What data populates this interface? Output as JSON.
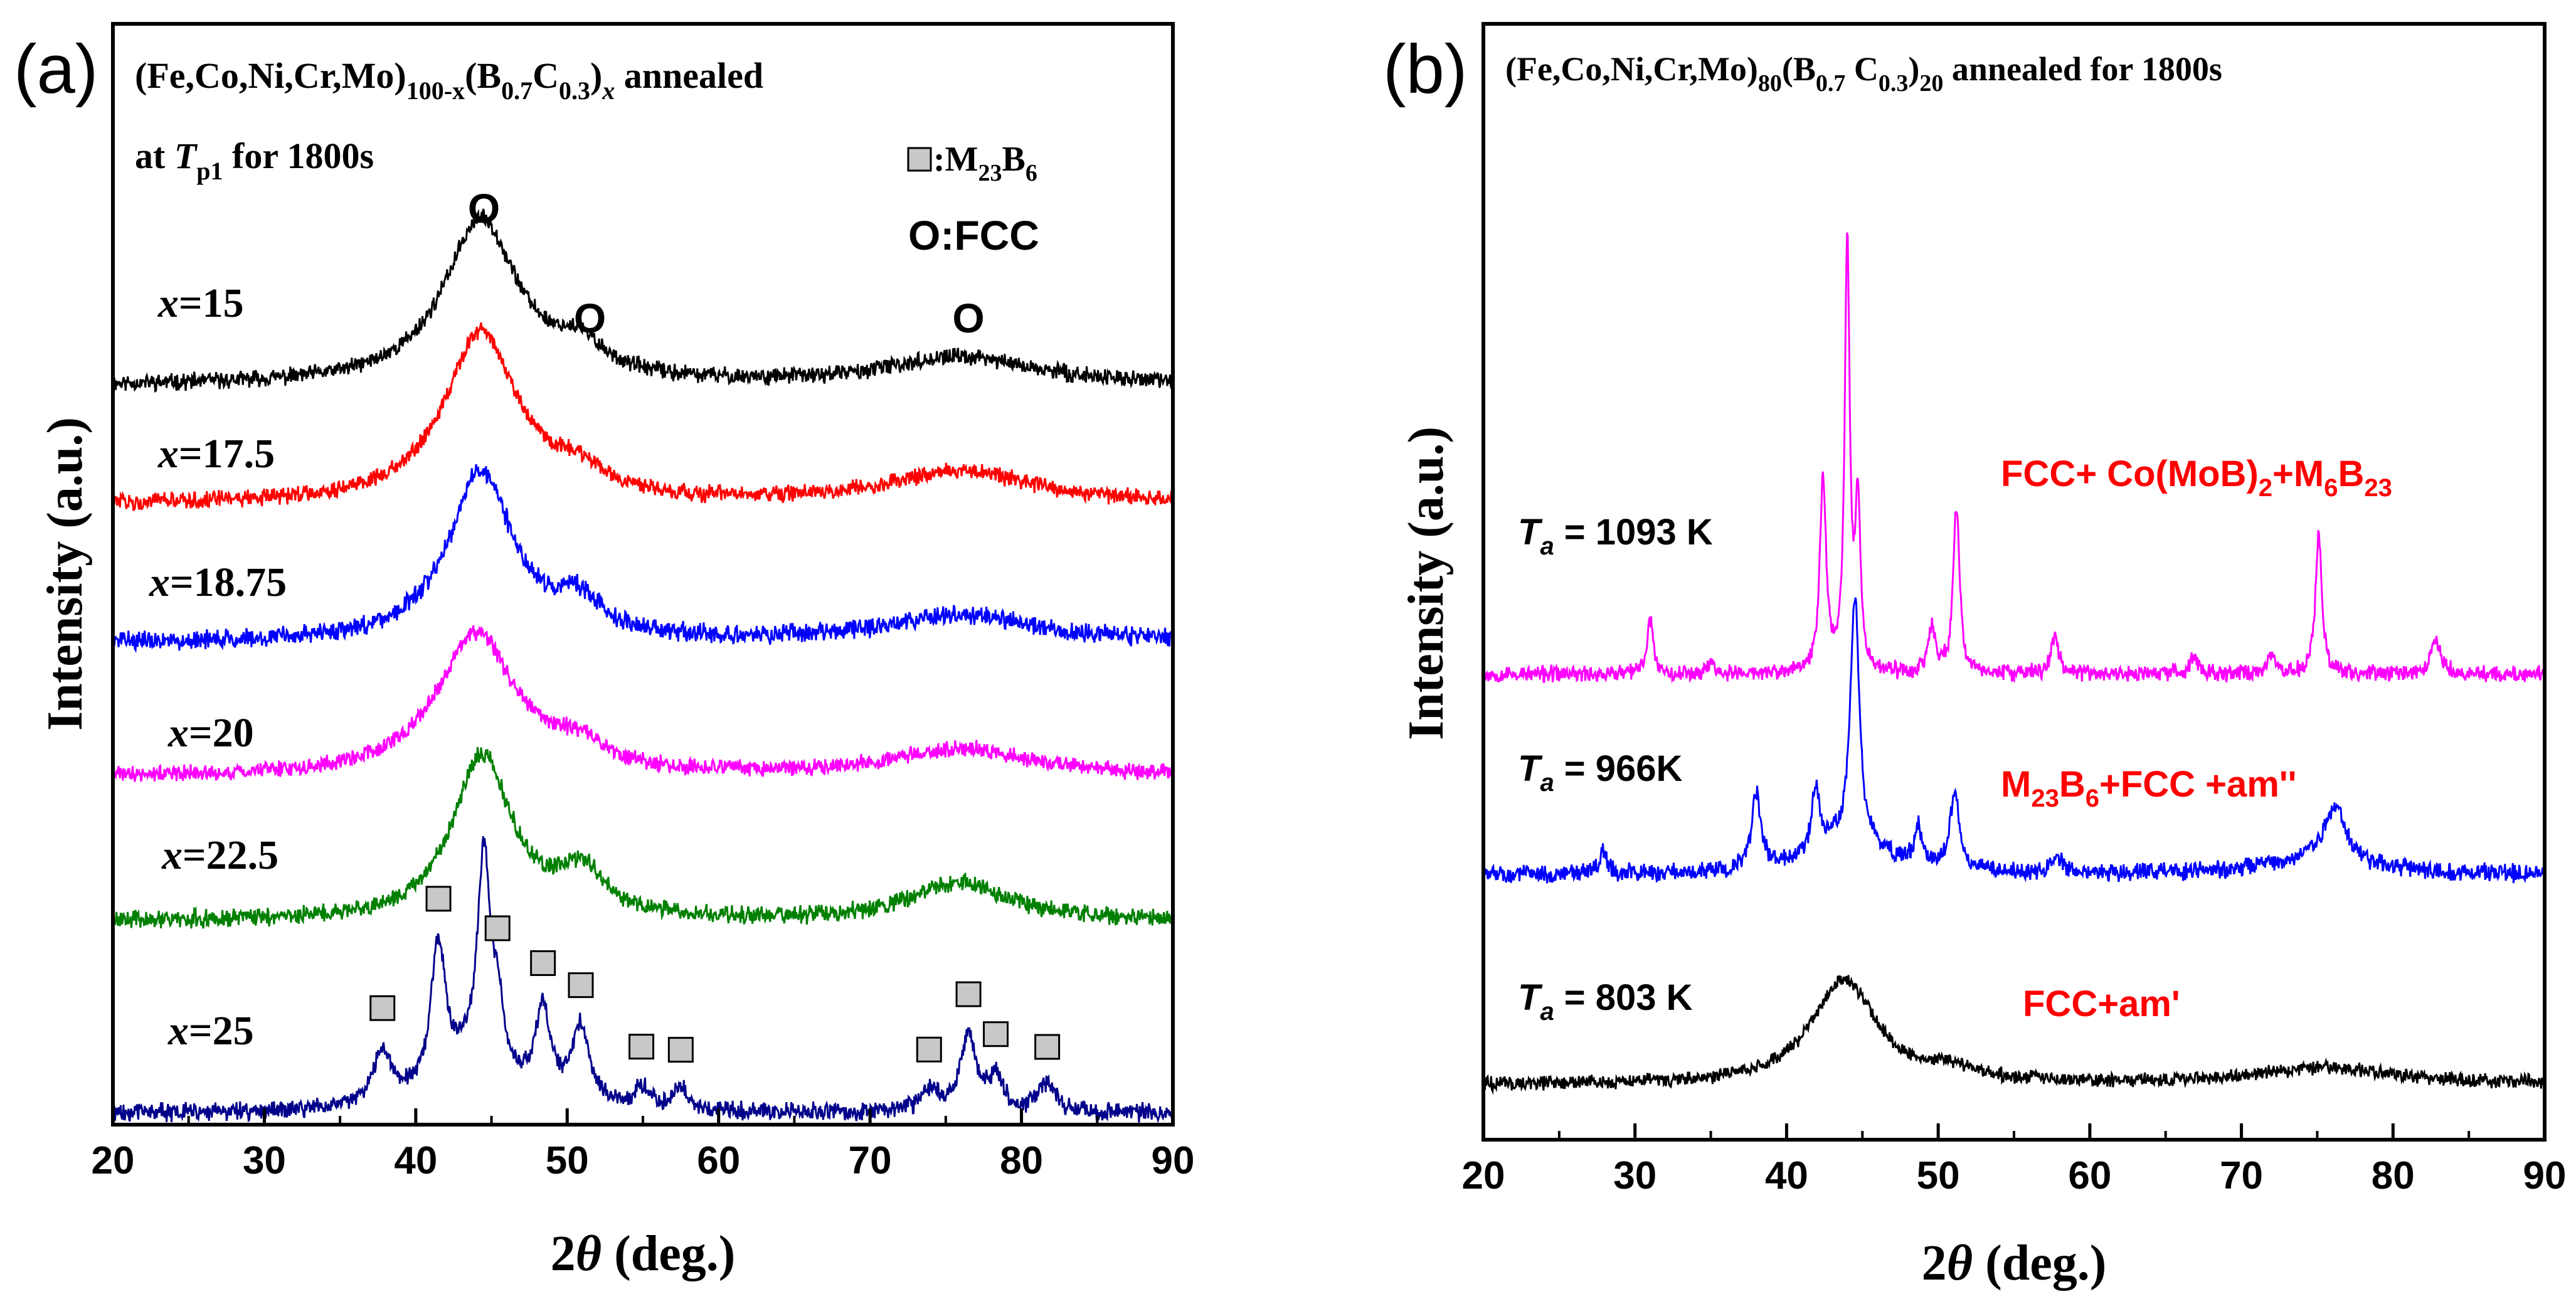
{
  "chart_data": [
    {
      "panel": "(a)",
      "type": "line",
      "title_line1": {
        "pre": "(Fe,Co,Ni,Cr,Mo)",
        "sub1": "100-x",
        "mid": "(B",
        "sub2": "0.7",
        "mid2": "C",
        "sub3": "0.3",
        "mid3": ")",
        "sub4": "x",
        "post": " annealed"
      },
      "title_line2": {
        "pre": "at ",
        "it": "T",
        "sub": "p1",
        "post": " for 1800s"
      },
      "xlabel": {
        "pre": "2",
        "theta": "θ",
        "post": " (deg.)"
      },
      "ylabel": "Intensity (a.u.)",
      "xlim": [
        20,
        90
      ],
      "xticks": [
        "20",
        "30",
        "40",
        "50",
        "60",
        "70",
        "80",
        "90"
      ],
      "xtick_values": [
        20,
        30,
        40,
        50,
        60,
        70,
        80,
        90
      ],
      "legend": {
        "m23b6": {
          "pre": ":M",
          "sub1": "23",
          "mid": "B",
          "sub2": "6"
        },
        "fcc": "O:FCC"
      },
      "fcc_marker": "O",
      "fcc_marker_positions": [
        44.5,
        51.5,
        76.5
      ],
      "m23b6_marker_positions": [
        37.8,
        41.5,
        45.4,
        48.4,
        50.9,
        54.9,
        57.5,
        73.9,
        76.5,
        78.3,
        81.7
      ],
      "series": [
        {
          "name": "x=15",
          "label_var": "x",
          "label_val": "=15",
          "color": "#000000",
          "base": 0.12,
          "noise": 0.012,
          "peaks": [
            [
              44.3,
              0.3,
              3.0
            ],
            [
              50.8,
              0.05,
              2.0
            ],
            [
              76.0,
              0.05,
              6.0
            ]
          ]
        },
        {
          "name": "x=17.5",
          "label_var": "x",
          "label_val": "=17.5",
          "color": "#ff0000",
          "base": 0.12,
          "noise": 0.012,
          "peaks": [
            [
              44.3,
              0.31,
              3.0
            ],
            [
              50.8,
              0.04,
              2.0
            ],
            [
              76.0,
              0.06,
              6.0
            ]
          ]
        },
        {
          "name": "x=18.75",
          "label_var": "x",
          "label_val": "=18.75",
          "color": "#0000ff",
          "base": 0.12,
          "noise": 0.014,
          "peaks": [
            [
              44.3,
              0.31,
              2.6
            ],
            [
              50.8,
              0.06,
              1.8
            ],
            [
              76.0,
              0.05,
              6.0
            ]
          ]
        },
        {
          "name": "x=20",
          "label_var": "x",
          "label_val": "=20",
          "color": "#ff00ff",
          "base": 0.12,
          "noise": 0.012,
          "peaks": [
            [
              44.0,
              0.26,
              3.2
            ],
            [
              50.8,
              0.04,
              2.0
            ],
            [
              76.0,
              0.05,
              6.0
            ]
          ]
        },
        {
          "name": "x=22.5",
          "label_var": "x",
          "label_val": "=22.5",
          "color": "#008000",
          "base": 0.12,
          "noise": 0.013,
          "peaks": [
            [
              44.4,
              0.3,
              2.4
            ],
            [
              51.0,
              0.08,
              1.8
            ],
            [
              76.0,
              0.07,
              4.0
            ]
          ]
        },
        {
          "name": "x=25",
          "label_var": "x",
          "label_val": "=25",
          "color": "#00008b",
          "base": 0.12,
          "noise": 0.013,
          "peaks": [
            [
              37.8,
              0.1,
              0.7
            ],
            [
              41.5,
              0.26,
              0.6
            ],
            [
              44.5,
              0.38,
              0.5
            ],
            [
              45.4,
              0.1,
              0.5
            ],
            [
              48.4,
              0.16,
              0.6
            ],
            [
              50.9,
              0.14,
              0.7
            ],
            [
              54.9,
              0.04,
              0.6
            ],
            [
              57.5,
              0.04,
              0.6
            ],
            [
              73.9,
              0.04,
              0.7
            ],
            [
              76.5,
              0.14,
              0.6
            ],
            [
              78.3,
              0.06,
              0.6
            ],
            [
              81.7,
              0.05,
              0.7
            ],
            [
              44.0,
              0.08,
              3.0
            ]
          ]
        }
      ]
    },
    {
      "panel": "(b)",
      "type": "line",
      "title": {
        "pre": "(Fe,Co,Ni,Cr,Mo)",
        "sub1": "80",
        "mid": "(B",
        "sub2": "0.7",
        "mid2": " C",
        "sub3": "0.3",
        "mid3": ")",
        "sub4": "20",
        "post": " annealed for 1800s"
      },
      "xlabel": {
        "pre": "2",
        "theta": "θ",
        "post": "  (deg.)"
      },
      "ylabel": "Intensity (a.u.)",
      "xlim": [
        20,
        90
      ],
      "xticks": [
        "20",
        "30",
        "40",
        "50",
        "60",
        "70",
        "80",
        "90"
      ],
      "xtick_values": [
        20,
        30,
        40,
        50,
        60,
        70,
        80,
        90
      ],
      "series": [
        {
          "name": "Ta = 1093 K",
          "t": "T",
          "t_sub": "a",
          "t_val": " = 1093 K",
          "color": "#ff00ff",
          "phase": {
            "pre": "FCC+ Co(MoB)",
            "sub1": "2",
            "mid": "+M",
            "sub2": "6",
            "mid2": "B",
            "sub3": "23"
          },
          "base": 0.12,
          "noise": 0.012,
          "peaks": [
            [
              31.0,
              0.1,
              0.25
            ],
            [
              35.0,
              0.02,
              0.3
            ],
            [
              42.4,
              0.35,
              0.25
            ],
            [
              44.0,
              0.78,
              0.2
            ],
            [
              44.7,
              0.3,
              0.2
            ],
            [
              49.6,
              0.08,
              0.3
            ],
            [
              51.2,
              0.3,
              0.25
            ],
            [
              57.7,
              0.07,
              0.3
            ],
            [
              66.9,
              0.03,
              0.4
            ],
            [
              72.0,
              0.03,
              0.4
            ],
            [
              75.1,
              0.26,
              0.25
            ],
            [
              82.8,
              0.06,
              0.4
            ]
          ]
        },
        {
          "name": "Ta = 966K",
          "t": "T",
          "t_sub": "a",
          "t_val": " =  966K",
          "color": "#0000ff",
          "phase": {
            "pre": "M",
            "sub1": "23",
            "mid": "B",
            "sub2": "6",
            "mid2": "+FCC +am''",
            "sub3": ""
          },
          "base": 0.12,
          "noise": 0.013,
          "peaks": [
            [
              27.9,
              0.04,
              0.3
            ],
            [
              38.0,
              0.14,
              0.35
            ],
            [
              41.9,
              0.12,
              0.3
            ],
            [
              44.5,
              0.45,
              0.35
            ],
            [
              48.7,
              0.07,
              0.3
            ],
            [
              51.1,
              0.15,
              0.35
            ],
            [
              57.8,
              0.03,
              0.4
            ],
            [
              76.2,
              0.1,
              0.8
            ],
            [
              44.0,
              0.06,
              3.0
            ],
            [
              75.0,
              0.03,
              4.0
            ]
          ]
        },
        {
          "name": "Ta = 803 K",
          "t": "T",
          "t_sub": "a",
          "t_val": " = 803 K",
          "color": "#000000",
          "phase": {
            "pre": "FCC+am'",
            "sub1": "",
            "mid": "",
            "sub2": "",
            "mid2": "",
            "sub3": ""
          },
          "base": 0.12,
          "noise": 0.01,
          "peaks": [
            [
              43.8,
              0.19,
              2.6
            ],
            [
              51.0,
              0.02,
              2.0
            ],
            [
              75.5,
              0.03,
              6.0
            ]
          ]
        }
      ]
    }
  ],
  "panel_labels": {
    "a": "(a)",
    "b": "(b)"
  },
  "colors": {
    "axis": "#000000",
    "phase_label": "#ff0000",
    "marker_fill": "#c8c8c8"
  }
}
